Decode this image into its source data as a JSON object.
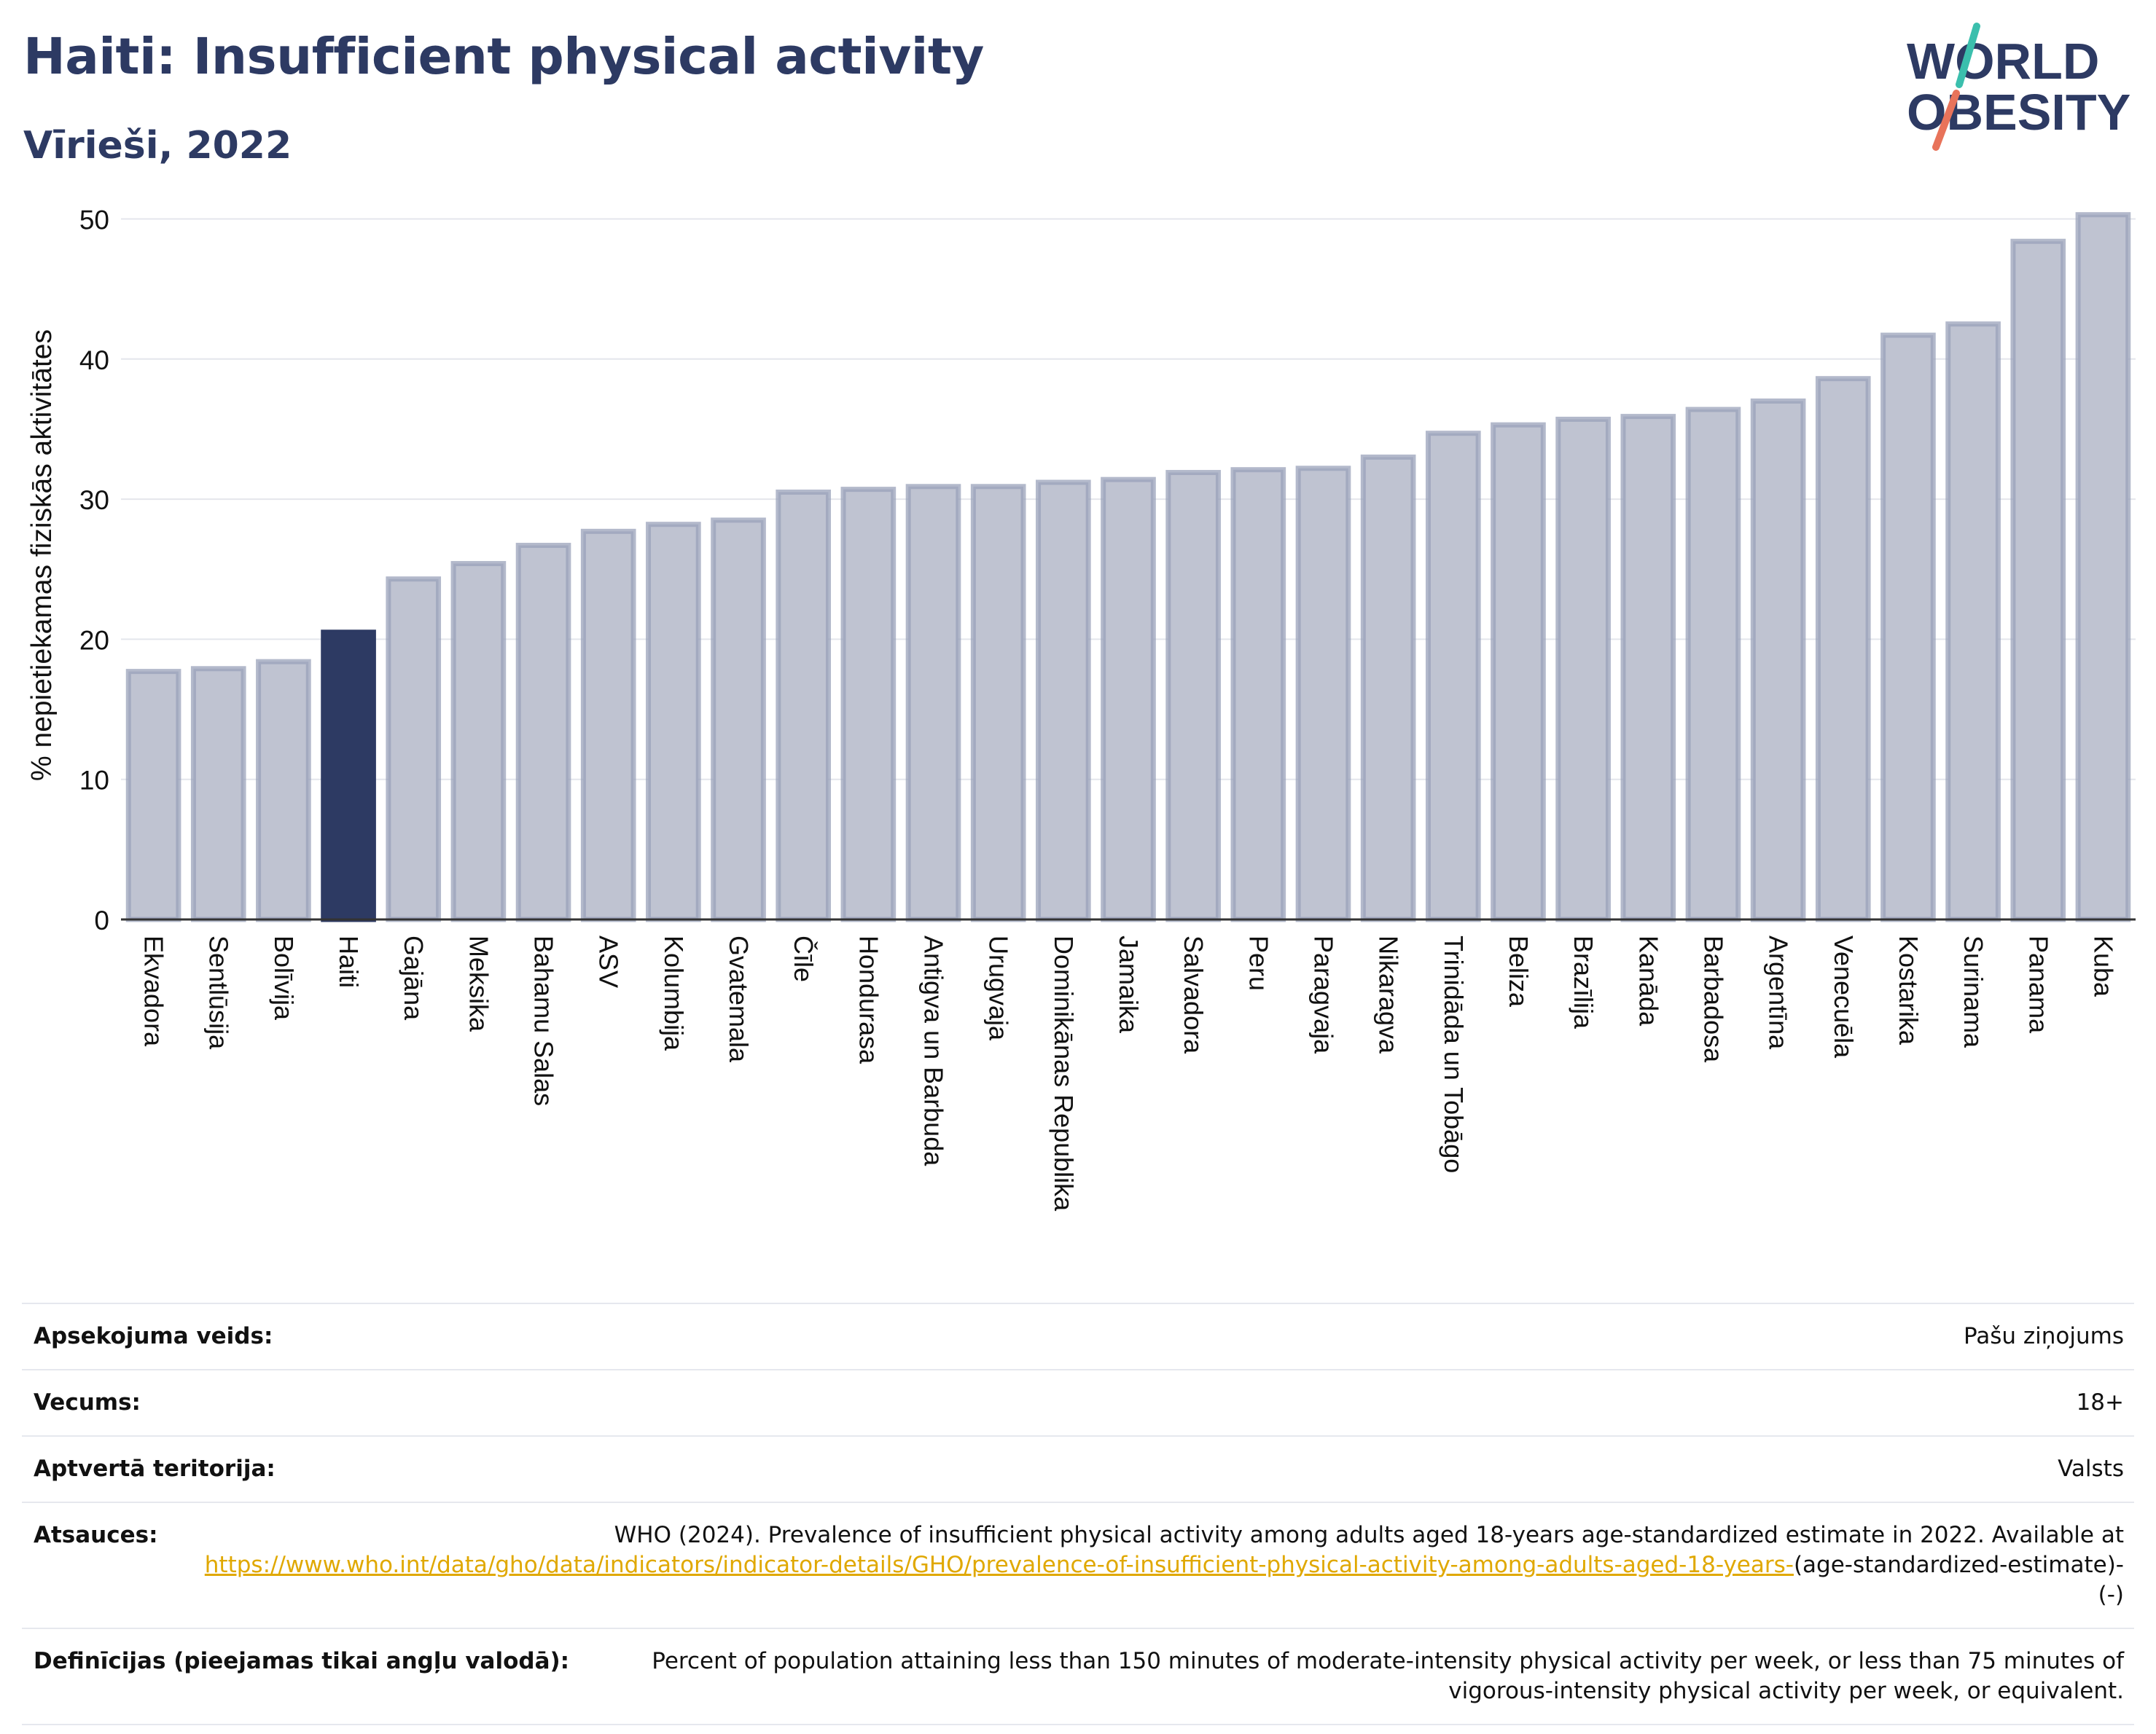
{
  "header": {
    "title": "Haiti: Insufficient physical activity",
    "subtitle": "Vīrieši, 2022"
  },
  "logo": {
    "line1": "WORLD",
    "line2": "OBESITY",
    "color_text": "#2d3a63",
    "color_teal": "#3bbfad",
    "color_coral": "#e8735a"
  },
  "colors": {
    "bar": "#bfc3d1",
    "bar_stroke": "#9aa1b9",
    "highlight": "#2d3a63",
    "grid": "#e4e6ec",
    "axis": "#333333"
  },
  "chart_data": {
    "type": "bar",
    "ylabel": "% nepietiekamas fiziskās aktivitātes",
    "xlabel": "",
    "ylim": [
      0,
      52
    ],
    "yticks": [
      0,
      10,
      20,
      30,
      40,
      50
    ],
    "grid": true,
    "highlight": "Haiti",
    "categories": [
      "Ekvadora",
      "Sentlūsija",
      "Bolīvija",
      "Haiti",
      "Gajāna",
      "Meksika",
      "Bahamu Salas",
      "ASV",
      "Kolumbija",
      "Gvatemala",
      "Čīle",
      "Hondurasa",
      "Antigva un Barbuda",
      "Urugvaja",
      "Dominikānas Republika",
      "Jamaika",
      "Salvadora",
      "Peru",
      "Paragvaja",
      "Nikaragva",
      "Trinidāda un Tobāgo",
      "Beliza",
      "Brazīlija",
      "Kanāda",
      "Barbadosa",
      "Argentīna",
      "Venecuēla",
      "Kostarika",
      "Surinama",
      "Panama",
      "Kuba"
    ],
    "values": [
      17.7,
      17.9,
      18.4,
      20.5,
      24.3,
      25.4,
      26.7,
      27.7,
      28.2,
      28.5,
      30.5,
      30.7,
      30.9,
      30.9,
      31.2,
      31.4,
      31.9,
      32.1,
      32.2,
      33.0,
      34.7,
      35.3,
      35.7,
      35.9,
      36.4,
      37.0,
      38.6,
      41.7,
      42.5,
      48.4,
      50.3
    ]
  },
  "info": [
    {
      "label": "Apsekojuma veids:",
      "value": "Pašu ziņojums"
    },
    {
      "label": "Vecums:",
      "value": "18+"
    },
    {
      "label": "Aptvertā teritorija:",
      "value": "Valsts"
    }
  ],
  "references": {
    "label": "Atsauces:",
    "text": "WHO (2024). Prevalence of insufficient physical activity among adults aged 18-years age-standardized estimate in 2022. Available at",
    "link": "https://www.who.int/data/gho/data/indicators/indicator-details/GHO/prevalence-of-insufficient-physical-activity-among-adults-aged-18-years-",
    "suffix": "(age-standardized-estimate)-(-)"
  },
  "definitions": {
    "label": "Definīcijas (pieejamas tikai angļu valodā):",
    "value": "Percent of population attaining less than 150 minutes of moderate-intensity physical activity per week, or less than 75 minutes of vigorous-intensity physical activity per week, or equivalent."
  }
}
